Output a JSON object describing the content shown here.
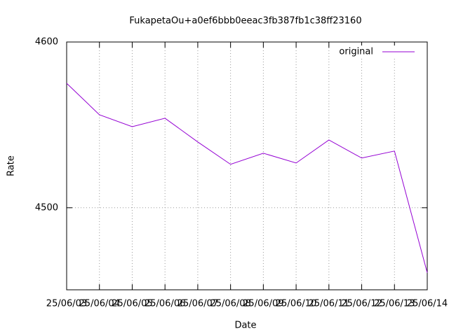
{
  "chart_data": {
    "type": "line",
    "title": "FukapetaOu+a0ef6bbb0eeac3fb387fb1c38ff23160",
    "x_label": "Date",
    "y_label": "Rate",
    "categories": [
      "25/06/03",
      "25/06/04",
      "25/06/05",
      "25/06/06",
      "25/06/07",
      "25/06/08",
      "25/06/09",
      "25/06/10",
      "25/06/11",
      "25/06/12",
      "25/06/13",
      "25/06/14"
    ],
    "series": [
      {
        "name": "original",
        "color": "#9400d3",
        "values": [
          4575.1,
          4556.1,
          4548.9,
          4554.0,
          4539.7,
          4526.2,
          4532.9,
          4527.0,
          4540.9,
          4530.0,
          4534.2,
          4460.8
        ]
      }
    ],
    "ylim": [
      4450.5,
      4600
    ],
    "yticks": [
      4500,
      4600
    ],
    "grid": true,
    "legend": "top-right"
  }
}
